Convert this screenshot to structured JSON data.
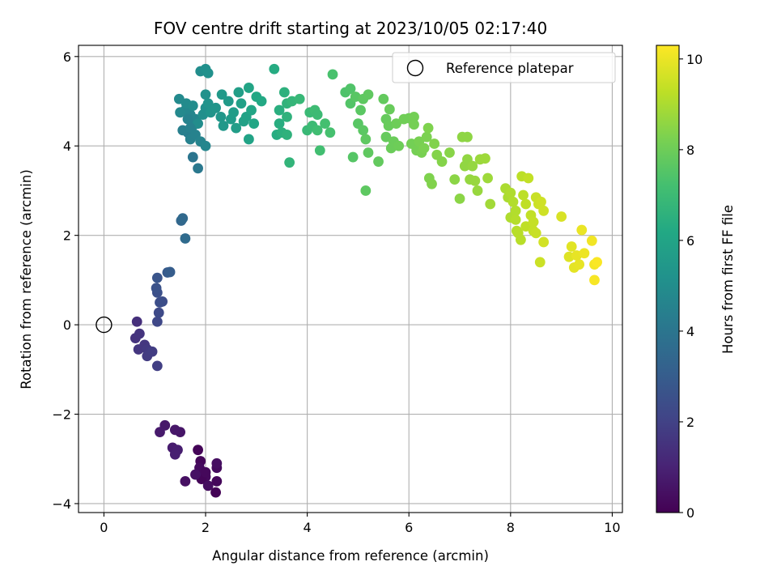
{
  "chart_data": {
    "type": "scatter",
    "title": "FOV centre drift starting at 2023/10/05 02:17:40",
    "xlabel": "Angular distance from reference (arcmin)",
    "ylabel": "Rotation from reference (arcmin)",
    "xlim": [
      -0.5,
      10.2
    ],
    "ylim": [
      -4.2,
      6.25
    ],
    "xticks": [
      0,
      2,
      4,
      6,
      8,
      10
    ],
    "yticks": [
      -4,
      -2,
      0,
      2,
      4,
      6
    ],
    "grid": true,
    "legend": {
      "placement": "upper-right",
      "entries": [
        "Reference platepar"
      ]
    },
    "reference_point": {
      "x": 0,
      "y": 0
    },
    "colorbar": {
      "label": "Hours from first FF file",
      "colormap": "viridis",
      "range": [
        0,
        10.3
      ],
      "ticks": [
        0,
        2,
        4,
        6,
        8,
        10
      ]
    },
    "series": [
      {
        "points": [
          {
            "x": 1.85,
            "y": -2.8,
            "c": 0.1
          },
          {
            "x": 1.9,
            "y": -3.05,
            "c": 0.15
          },
          {
            "x": 1.95,
            "y": -3.3,
            "c": 0.2
          },
          {
            "x": 2.0,
            "y": -3.4,
            "c": 0.25
          },
          {
            "x": 1.88,
            "y": -3.2,
            "c": 0.3
          },
          {
            "x": 1.92,
            "y": -3.45,
            "c": 0.12
          },
          {
            "x": 2.05,
            "y": -3.6,
            "c": 0.35
          },
          {
            "x": 2.2,
            "y": -3.75,
            "c": 0.05
          },
          {
            "x": 2.22,
            "y": -3.5,
            "c": 0.18
          },
          {
            "x": 2.22,
            "y": -3.2,
            "c": 0.28
          },
          {
            "x": 2.22,
            "y": -3.1,
            "c": 0.4
          },
          {
            "x": 1.6,
            "y": -3.5,
            "c": 0.45
          },
          {
            "x": 1.8,
            "y": -3.35,
            "c": 0.5
          },
          {
            "x": 2.0,
            "y": -3.3,
            "c": 0.22
          },
          {
            "x": 1.5,
            "y": -2.4,
            "c": 0.6
          },
          {
            "x": 1.4,
            "y": -2.35,
            "c": 0.65
          },
          {
            "x": 1.2,
            "y": -2.25,
            "c": 0.7
          },
          {
            "x": 1.1,
            "y": -2.4,
            "c": 0.75
          },
          {
            "x": 1.35,
            "y": -2.75,
            "c": 0.8
          },
          {
            "x": 1.45,
            "y": -2.8,
            "c": 0.85
          },
          {
            "x": 1.4,
            "y": -2.9,
            "c": 0.9
          },
          {
            "x": 0.65,
            "y": 0.07,
            "c": 1.4
          },
          {
            "x": 0.62,
            "y": -0.3,
            "c": 1.5
          },
          {
            "x": 0.7,
            "y": -0.2,
            "c": 1.55
          },
          {
            "x": 0.68,
            "y": -0.55,
            "c": 1.6
          },
          {
            "x": 0.8,
            "y": -0.45,
            "c": 1.65
          },
          {
            "x": 0.85,
            "y": -0.55,
            "c": 1.7
          },
          {
            "x": 0.9,
            "y": -0.6,
            "c": 1.75
          },
          {
            "x": 0.85,
            "y": -0.7,
            "c": 1.8
          },
          {
            "x": 0.95,
            "y": -0.6,
            "c": 1.85
          },
          {
            "x": 1.05,
            "y": -0.92,
            "c": 1.9
          },
          {
            "x": 1.05,
            "y": 0.07,
            "c": 2.2
          },
          {
            "x": 1.08,
            "y": 0.27,
            "c": 2.3
          },
          {
            "x": 1.15,
            "y": 0.52,
            "c": 2.4
          },
          {
            "x": 1.1,
            "y": 0.5,
            "c": 2.45
          },
          {
            "x": 1.05,
            "y": 0.72,
            "c": 2.5
          },
          {
            "x": 1.03,
            "y": 0.82,
            "c": 2.6
          },
          {
            "x": 1.05,
            "y": 1.05,
            "c": 2.7
          },
          {
            "x": 1.25,
            "y": 1.17,
            "c": 2.9
          },
          {
            "x": 1.3,
            "y": 1.18,
            "c": 3.0
          },
          {
            "x": 1.52,
            "y": 2.33,
            "c": 3.4
          },
          {
            "x": 1.55,
            "y": 2.38,
            "c": 3.5
          },
          {
            "x": 1.6,
            "y": 1.93,
            "c": 3.6
          },
          {
            "x": 1.75,
            "y": 3.75,
            "c": 4.0
          },
          {
            "x": 1.85,
            "y": 3.5,
            "c": 4.1
          },
          {
            "x": 1.65,
            "y": 4.3,
            "c": 4.3
          },
          {
            "x": 1.55,
            "y": 4.35,
            "c": 4.4
          },
          {
            "x": 1.7,
            "y": 4.15,
            "c": 4.5
          },
          {
            "x": 1.75,
            "y": 4.45,
            "c": 4.6
          },
          {
            "x": 1.8,
            "y": 4.6,
            "c": 4.65
          },
          {
            "x": 1.7,
            "y": 4.7,
            "c": 4.7
          },
          {
            "x": 1.6,
            "y": 4.8,
            "c": 4.75
          },
          {
            "x": 1.5,
            "y": 4.75,
            "c": 4.8
          },
          {
            "x": 1.48,
            "y": 5.05,
            "c": 4.85
          },
          {
            "x": 1.62,
            "y": 4.95,
            "c": 4.9
          },
          {
            "x": 1.75,
            "y": 4.9,
            "c": 4.95
          },
          {
            "x": 1.85,
            "y": 4.5,
            "c": 5.0
          },
          {
            "x": 1.95,
            "y": 4.7,
            "c": 5.05
          },
          {
            "x": 2.0,
            "y": 4.85,
            "c": 5.1
          },
          {
            "x": 1.65,
            "y": 4.6,
            "c": 4.55
          },
          {
            "x": 1.7,
            "y": 4.4,
            "c": 4.5
          },
          {
            "x": 1.8,
            "y": 4.25,
            "c": 4.55
          },
          {
            "x": 1.9,
            "y": 4.1,
            "c": 4.6
          },
          {
            "x": 2.0,
            "y": 4.0,
            "c": 4.7
          },
          {
            "x": 2.0,
            "y": 5.15,
            "c": 5.2
          },
          {
            "x": 2.05,
            "y": 4.95,
            "c": 5.25
          },
          {
            "x": 2.1,
            "y": 4.75,
            "c": 5.3
          },
          {
            "x": 1.9,
            "y": 5.67,
            "c": 5.0
          },
          {
            "x": 2.0,
            "y": 5.72,
            "c": 5.1
          },
          {
            "x": 2.05,
            "y": 5.63,
            "c": 5.15
          },
          {
            "x": 2.2,
            "y": 4.85,
            "c": 5.35
          },
          {
            "x": 2.3,
            "y": 4.65,
            "c": 5.4
          },
          {
            "x": 2.35,
            "y": 4.45,
            "c": 5.45
          },
          {
            "x": 2.32,
            "y": 5.15,
            "c": 5.5
          },
          {
            "x": 2.45,
            "y": 5.0,
            "c": 5.55
          },
          {
            "x": 2.5,
            "y": 4.6,
            "c": 5.6
          },
          {
            "x": 2.55,
            "y": 4.75,
            "c": 5.65
          },
          {
            "x": 2.6,
            "y": 4.4,
            "c": 5.7
          },
          {
            "x": 2.65,
            "y": 5.2,
            "c": 5.75
          },
          {
            "x": 2.7,
            "y": 4.95,
            "c": 5.8
          },
          {
            "x": 2.75,
            "y": 4.55,
            "c": 5.85
          },
          {
            "x": 2.8,
            "y": 4.65,
            "c": 5.9
          },
          {
            "x": 2.85,
            "y": 4.15,
            "c": 5.95
          },
          {
            "x": 2.85,
            "y": 5.3,
            "c": 6.0
          },
          {
            "x": 2.9,
            "y": 4.8,
            "c": 6.05
          },
          {
            "x": 2.95,
            "y": 4.5,
            "c": 6.1
          },
          {
            "x": 3.0,
            "y": 5.1,
            "c": 6.15
          },
          {
            "x": 3.1,
            "y": 5.0,
            "c": 6.2
          },
          {
            "x": 3.35,
            "y": 5.72,
            "c": 6.3
          },
          {
            "x": 3.4,
            "y": 4.25,
            "c": 6.35
          },
          {
            "x": 3.45,
            "y": 4.5,
            "c": 6.4
          },
          {
            "x": 3.45,
            "y": 4.8,
            "c": 6.45
          },
          {
            "x": 3.5,
            "y": 4.3,
            "c": 6.5
          },
          {
            "x": 3.55,
            "y": 5.2,
            "c": 6.55
          },
          {
            "x": 3.6,
            "y": 4.65,
            "c": 6.6
          },
          {
            "x": 3.6,
            "y": 4.95,
            "c": 6.65
          },
          {
            "x": 3.65,
            "y": 3.63,
            "c": 6.7
          },
          {
            "x": 3.7,
            "y": 5.0,
            "c": 6.75
          },
          {
            "x": 3.6,
            "y": 4.25,
            "c": 6.6
          },
          {
            "x": 3.85,
            "y": 5.05,
            "c": 6.85
          },
          {
            "x": 4.0,
            "y": 4.35,
            "c": 6.9
          },
          {
            "x": 4.05,
            "y": 4.75,
            "c": 6.95
          },
          {
            "x": 4.1,
            "y": 4.45,
            "c": 7.0
          },
          {
            "x": 4.15,
            "y": 4.8,
            "c": 7.05
          },
          {
            "x": 4.2,
            "y": 4.35,
            "c": 7.1
          },
          {
            "x": 4.25,
            "y": 3.9,
            "c": 7.15
          },
          {
            "x": 4.2,
            "y": 4.7,
            "c": 7.0
          },
          {
            "x": 4.35,
            "y": 4.5,
            "c": 7.2
          },
          {
            "x": 4.45,
            "y": 4.3,
            "c": 7.25
          },
          {
            "x": 4.5,
            "y": 5.6,
            "c": 7.3
          },
          {
            "x": 4.75,
            "y": 5.2,
            "c": 7.4
          },
          {
            "x": 4.85,
            "y": 5.28,
            "c": 7.45
          },
          {
            "x": 4.85,
            "y": 4.95,
            "c": 7.5
          },
          {
            "x": 4.9,
            "y": 3.75,
            "c": 7.55
          },
          {
            "x": 4.95,
            "y": 5.1,
            "c": 7.6
          },
          {
            "x": 5.0,
            "y": 4.5,
            "c": 7.6
          },
          {
            "x": 5.05,
            "y": 4.8,
            "c": 7.65
          },
          {
            "x": 5.1,
            "y": 4.35,
            "c": 7.65
          },
          {
            "x": 5.1,
            "y": 5.05,
            "c": 7.7
          },
          {
            "x": 5.15,
            "y": 3.0,
            "c": 7.7
          },
          {
            "x": 5.15,
            "y": 4.15,
            "c": 7.72
          },
          {
            "x": 5.2,
            "y": 3.85,
            "c": 7.75
          },
          {
            "x": 5.2,
            "y": 5.15,
            "c": 7.75
          },
          {
            "x": 5.4,
            "y": 3.65,
            "c": 7.8
          },
          {
            "x": 5.5,
            "y": 5.05,
            "c": 7.8
          },
          {
            "x": 5.55,
            "y": 4.2,
            "c": 7.85
          },
          {
            "x": 5.55,
            "y": 4.6,
            "c": 7.85
          },
          {
            "x": 5.6,
            "y": 4.45,
            "c": 7.9
          },
          {
            "x": 5.62,
            "y": 4.82,
            "c": 7.9
          },
          {
            "x": 5.65,
            "y": 3.95,
            "c": 7.95
          },
          {
            "x": 5.7,
            "y": 4.1,
            "c": 7.95
          },
          {
            "x": 5.75,
            "y": 4.5,
            "c": 8.0
          },
          {
            "x": 5.8,
            "y": 4.0,
            "c": 8.0
          },
          {
            "x": 5.9,
            "y": 4.6,
            "c": 8.05
          },
          {
            "x": 6.0,
            "y": 4.62,
            "c": 8.05
          },
          {
            "x": 6.05,
            "y": 4.05,
            "c": 8.1
          },
          {
            "x": 6.1,
            "y": 4.65,
            "c": 8.1
          },
          {
            "x": 6.1,
            "y": 4.48,
            "c": 8.15
          },
          {
            "x": 6.15,
            "y": 3.9,
            "c": 8.15
          },
          {
            "x": 6.2,
            "y": 4.1,
            "c": 8.2
          },
          {
            "x": 6.25,
            "y": 3.85,
            "c": 8.2
          },
          {
            "x": 6.3,
            "y": 3.95,
            "c": 8.25
          },
          {
            "x": 6.35,
            "y": 4.2,
            "c": 8.25
          },
          {
            "x": 6.38,
            "y": 4.4,
            "c": 8.3
          },
          {
            "x": 6.4,
            "y": 3.28,
            "c": 8.3
          },
          {
            "x": 6.45,
            "y": 3.15,
            "c": 8.35
          },
          {
            "x": 6.5,
            "y": 4.05,
            "c": 8.35
          },
          {
            "x": 6.55,
            "y": 3.8,
            "c": 8.4
          },
          {
            "x": 6.65,
            "y": 3.65,
            "c": 8.4
          },
          {
            "x": 6.8,
            "y": 3.85,
            "c": 8.45
          },
          {
            "x": 6.9,
            "y": 3.25,
            "c": 8.5
          },
          {
            "x": 7.0,
            "y": 2.82,
            "c": 8.5
          },
          {
            "x": 7.05,
            "y": 4.2,
            "c": 8.55
          },
          {
            "x": 7.15,
            "y": 4.2,
            "c": 8.55
          },
          {
            "x": 7.1,
            "y": 3.55,
            "c": 8.6
          },
          {
            "x": 7.15,
            "y": 3.7,
            "c": 8.6
          },
          {
            "x": 7.2,
            "y": 3.25,
            "c": 8.65
          },
          {
            "x": 7.25,
            "y": 3.55,
            "c": 8.65
          },
          {
            "x": 7.3,
            "y": 3.22,
            "c": 8.7
          },
          {
            "x": 7.35,
            "y": 3.0,
            "c": 8.7
          },
          {
            "x": 7.4,
            "y": 3.7,
            "c": 8.75
          },
          {
            "x": 7.5,
            "y": 3.72,
            "c": 8.8
          },
          {
            "x": 7.55,
            "y": 3.28,
            "c": 8.8
          },
          {
            "x": 7.6,
            "y": 2.7,
            "c": 8.85
          },
          {
            "x": 7.9,
            "y": 3.05,
            "c": 9.0
          },
          {
            "x": 7.95,
            "y": 2.85,
            "c": 9.0
          },
          {
            "x": 8.0,
            "y": 2.4,
            "c": 9.05
          },
          {
            "x": 8.0,
            "y": 2.95,
            "c": 9.05
          },
          {
            "x": 8.05,
            "y": 2.75,
            "c": 9.1
          },
          {
            "x": 8.1,
            "y": 2.55,
            "c": 9.1
          },
          {
            "x": 8.1,
            "y": 2.35,
            "c": 9.15
          },
          {
            "x": 8.12,
            "y": 2.1,
            "c": 9.15
          },
          {
            "x": 8.15,
            "y": 2.05,
            "c": 9.2
          },
          {
            "x": 8.2,
            "y": 1.9,
            "c": 9.2
          },
          {
            "x": 8.22,
            "y": 3.32,
            "c": 9.25
          },
          {
            "x": 8.25,
            "y": 2.9,
            "c": 9.25
          },
          {
            "x": 8.3,
            "y": 2.7,
            "c": 9.3
          },
          {
            "x": 8.3,
            "y": 2.2,
            "c": 9.3
          },
          {
            "x": 8.35,
            "y": 3.28,
            "c": 9.35
          },
          {
            "x": 8.4,
            "y": 2.45,
            "c": 9.35
          },
          {
            "x": 8.45,
            "y": 2.1,
            "c": 9.4
          },
          {
            "x": 8.45,
            "y": 2.3,
            "c": 9.4
          },
          {
            "x": 8.5,
            "y": 2.85,
            "c": 9.45
          },
          {
            "x": 8.5,
            "y": 2.05,
            "c": 9.45
          },
          {
            "x": 8.55,
            "y": 2.7,
            "c": 9.5
          },
          {
            "x": 8.58,
            "y": 1.4,
            "c": 9.5
          },
          {
            "x": 8.6,
            "y": 2.75,
            "c": 9.55
          },
          {
            "x": 8.65,
            "y": 2.55,
            "c": 9.55
          },
          {
            "x": 8.65,
            "y": 1.85,
            "c": 9.6
          },
          {
            "x": 9.0,
            "y": 2.42,
            "c": 9.7
          },
          {
            "x": 9.15,
            "y": 1.52,
            "c": 9.8
          },
          {
            "x": 9.2,
            "y": 1.75,
            "c": 9.85
          },
          {
            "x": 9.25,
            "y": 1.28,
            "c": 9.9
          },
          {
            "x": 9.3,
            "y": 1.55,
            "c": 9.95
          },
          {
            "x": 9.35,
            "y": 1.35,
            "c": 9.95
          },
          {
            "x": 9.4,
            "y": 2.12,
            "c": 10.0
          },
          {
            "x": 9.45,
            "y": 1.6,
            "c": 10.05
          },
          {
            "x": 9.6,
            "y": 1.88,
            "c": 10.1
          },
          {
            "x": 9.65,
            "y": 1.35,
            "c": 10.15
          },
          {
            "x": 9.65,
            "y": 1.0,
            "c": 10.2
          },
          {
            "x": 9.7,
            "y": 1.4,
            "c": 10.25
          }
        ]
      }
    ]
  }
}
